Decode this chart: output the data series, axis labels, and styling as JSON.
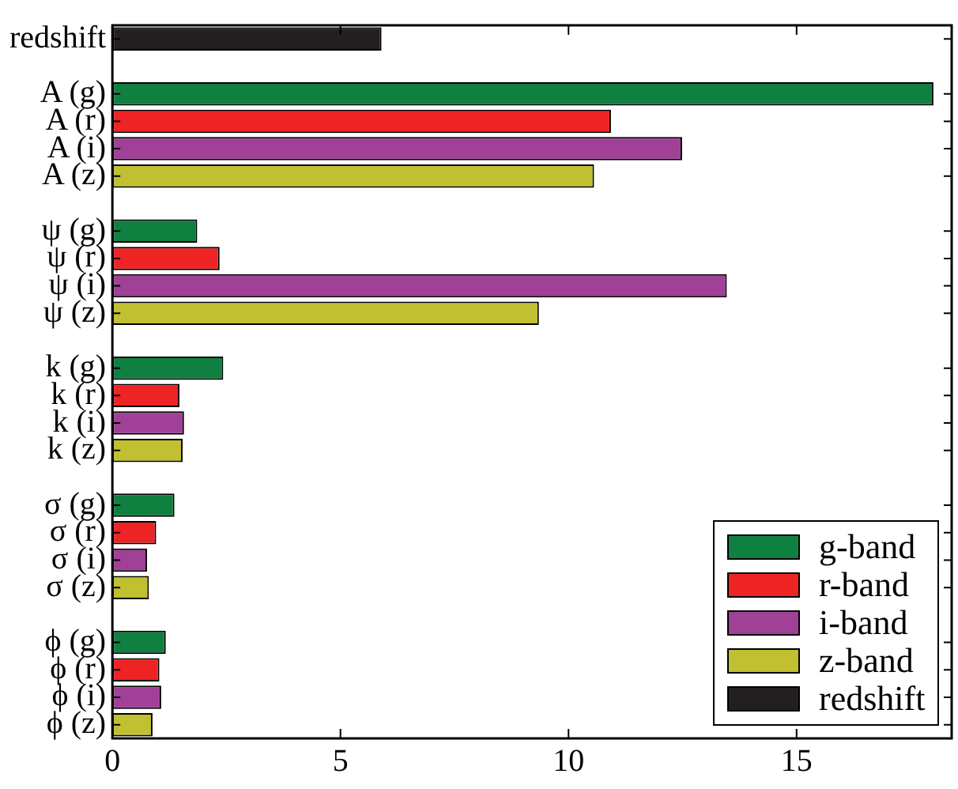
{
  "chart_data": {
    "type": "bar",
    "orientation": "horizontal",
    "stacked": true,
    "categories": [
      "redshift",
      null,
      "A (g)",
      "A (r)",
      "A (i)",
      "A (z)",
      null,
      "ψ (g)",
      "ψ (r)",
      "ψ (i)",
      "ψ (z)",
      null,
      "k (g)",
      "k (r)",
      "k (i)",
      "k (z)",
      null,
      "σ (g)",
      "σ (r)",
      "σ (i)",
      "σ (z)",
      null,
      "ϕ (g)",
      "ϕ (r)",
      "ϕ (i)",
      "ϕ (z)"
    ],
    "series": [
      {
        "name": "g-band",
        "color": "#108040",
        "values": [
          null,
          null,
          18.0,
          null,
          null,
          null,
          null,
          1.86,
          null,
          null,
          null,
          null,
          2.43,
          null,
          null,
          null,
          null,
          1.36,
          null,
          null,
          null,
          null,
          1.17,
          null,
          null,
          null
        ]
      },
      {
        "name": "r-band",
        "color": "#ee2424",
        "values": [
          null,
          null,
          null,
          10.93,
          null,
          null,
          null,
          null,
          2.35,
          null,
          null,
          null,
          null,
          1.47,
          null,
          null,
          null,
          null,
          0.96,
          null,
          null,
          null,
          null,
          1.03,
          null,
          null
        ]
      },
      {
        "name": "i-band",
        "color": "#a04096",
        "values": [
          null,
          null,
          null,
          null,
          12.49,
          null,
          null,
          null,
          null,
          13.47,
          null,
          null,
          null,
          null,
          1.57,
          null,
          null,
          null,
          null,
          0.76,
          null,
          null,
          null,
          null,
          1.07,
          null
        ]
      },
      {
        "name": "z-band",
        "color": "#c0c030",
        "values": [
          null,
          null,
          null,
          null,
          null,
          10.56,
          null,
          null,
          null,
          null,
          9.35,
          null,
          null,
          null,
          null,
          1.54,
          null,
          null,
          null,
          null,
          0.8,
          null,
          null,
          null,
          null,
          0.88
        ]
      },
      {
        "name": "redshift",
        "color": "#231f20",
        "values": [
          5.9,
          null,
          null,
          null,
          null,
          null,
          null,
          null,
          null,
          null,
          null,
          null,
          null,
          null,
          null,
          null,
          null,
          null,
          null,
          null,
          null,
          null,
          null,
          null,
          null,
          null
        ]
      }
    ],
    "xlim": [
      0,
      18.4
    ],
    "xticks": [
      0,
      5,
      10,
      15
    ],
    "grid": false,
    "legend": "bottom right"
  }
}
